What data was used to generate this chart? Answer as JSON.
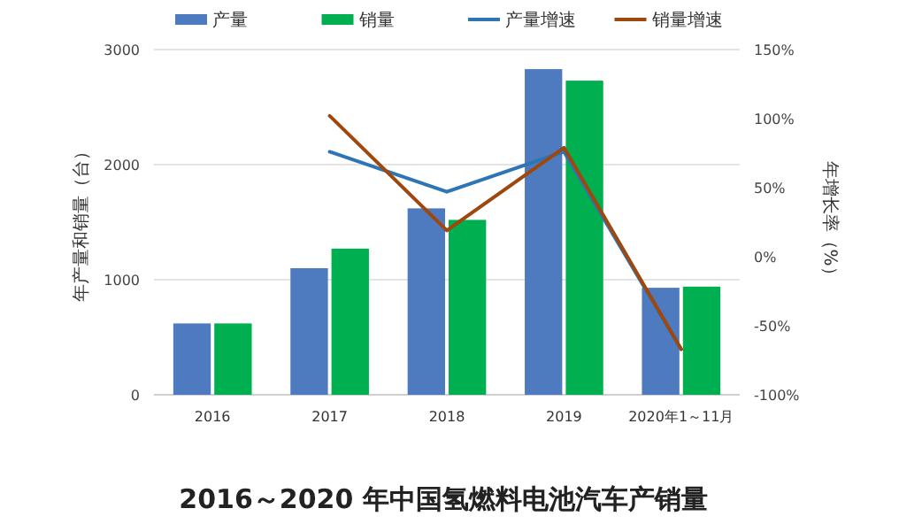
{
  "chart_data": {
    "type": "bar",
    "title": "2016～2020 年中国氢燃料电池汽车产销量",
    "categories": [
      "2016",
      "2017",
      "2018",
      "2019",
      "2020年1～11月"
    ],
    "ylabel": "年产量和销量（台）",
    "y2label": "年增长率（%）",
    "ylim": [
      0,
      3000
    ],
    "yticks": [
      0,
      1000,
      2000,
      3000
    ],
    "y2lim": [
      -100,
      150
    ],
    "y2ticks": [
      {
        "value": -100,
        "label": "-100%"
      },
      {
        "value": -50,
        "label": "-50%"
      },
      {
        "value": 0,
        "label": "0%"
      },
      {
        "value": 50,
        "label": "50%"
      },
      {
        "value": 100,
        "label": "100%"
      },
      {
        "value": 150,
        "label": "150%"
      }
    ],
    "grid": "y",
    "legend": "top",
    "series": [
      {
        "name": "产量",
        "color": "#4e7ac0",
        "values": [
          620,
          1100,
          1620,
          2830,
          930
        ]
      },
      {
        "name": "销量",
        "color": "#00b050",
        "values": [
          620,
          1270,
          1520,
          2730,
          940
        ]
      },
      {
        "name": "产量增速",
        "type": "line",
        "axis": "y2",
        "color": "#2e75b6",
        "values": [
          null,
          76,
          47,
          76,
          -67
        ]
      },
      {
        "name": "销量增速",
        "type": "line",
        "axis": "y2",
        "color": "#9e480e",
        "values": [
          null,
          102,
          19,
          79,
          -67
        ]
      }
    ]
  }
}
